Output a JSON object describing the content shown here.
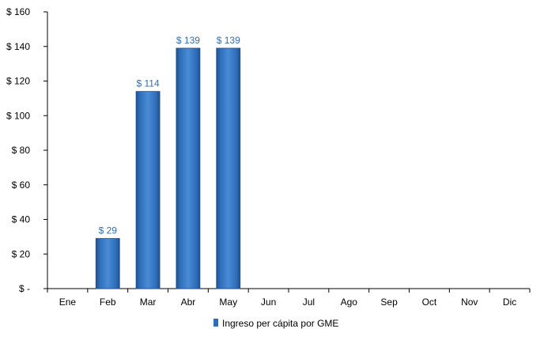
{
  "chart_data": {
    "type": "bar",
    "categories": [
      "Ene",
      "Feb",
      "Mar",
      "Abr",
      "May",
      "Jun",
      "Jul",
      "Ago",
      "Sep",
      "Oct",
      "Nov",
      "Dic"
    ],
    "series": [
      {
        "name": "Ingreso per cápita por GME",
        "values": [
          null,
          29,
          114,
          139,
          139,
          null,
          null,
          null,
          null,
          null,
          null,
          null
        ],
        "data_labels": [
          null,
          "$ 29",
          "$ 114",
          "$ 139",
          "$ 139",
          null,
          null,
          null,
          null,
          null,
          null,
          null
        ],
        "color": "#2E6DB8"
      }
    ],
    "yticks": [
      {
        "value": 0,
        "label": "$ -"
      },
      {
        "value": 20,
        "label": "$ 20"
      },
      {
        "value": 40,
        "label": "$ 40"
      },
      {
        "value": 60,
        "label": "$ 60"
      },
      {
        "value": 80,
        "label": "$ 80"
      },
      {
        "value": 100,
        "label": "$ 100"
      },
      {
        "value": 120,
        "label": "$ 120"
      },
      {
        "value": 140,
        "label": "$ 140"
      },
      {
        "value": 160,
        "label": "$ 160"
      }
    ],
    "ylim": [
      0,
      160
    ],
    "grid": false,
    "legend_position": "bottom",
    "label_color": "#2E6DB8",
    "axis_color": "#000000"
  }
}
